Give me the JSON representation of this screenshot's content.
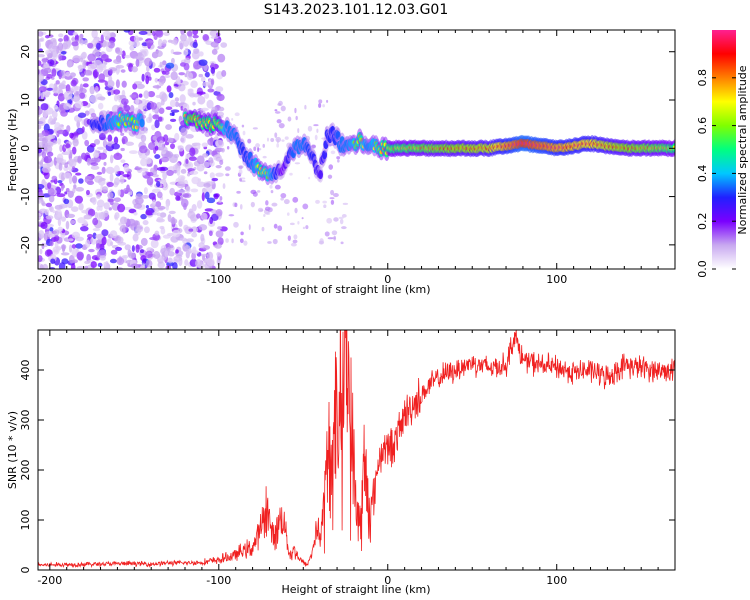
{
  "title": "S143.2023.101.12.03.G01",
  "chart_data": [
    {
      "type": "heatmap",
      "xlabel": "Height of straight line (km)",
      "ylabel": "Frequency (Hz)",
      "xlim": [
        -207,
        170
      ],
      "ylim": [
        -25,
        24.5
      ],
      "xticks": [
        -200,
        -100,
        0,
        100
      ],
      "xtick_labels": [
        "-200",
        "-100",
        "0",
        "100"
      ],
      "yticks": [
        -20,
        -10,
        0,
        10,
        20
      ],
      "ytick_labels": [
        "-20",
        "-10",
        "0",
        "10",
        "20"
      ],
      "colorbar": {
        "label": "Normalized spectral amplitude",
        "range": [
          0,
          1
        ],
        "ticks": [
          0.0,
          0.2,
          0.4,
          0.6,
          0.8
        ],
        "tick_labels": [
          "0.0",
          "0.2",
          "0.4",
          "0.6",
          "0.8"
        ],
        "colormap": [
          "#ffffff",
          "#c8a8f0",
          "#7a00ff",
          "#2020ff",
          "#00c8ff",
          "#00ff80",
          "#80ff00",
          "#ffff00",
          "#ff8000",
          "#ff0000",
          "#ff2090"
        ]
      },
      "ridge": {
        "x": [
          -210,
          -190,
          -170,
          -160,
          -150,
          -145,
          -130,
          -115,
          -110,
          -100,
          -95,
          -90,
          -85,
          -80,
          -75,
          -70,
          -66,
          -62,
          -58,
          -55,
          -50,
          -45,
          -40,
          -36,
          -32,
          -28,
          -24,
          -20,
          -16,
          -12,
          -8,
          -4,
          0,
          20,
          40,
          60,
          80,
          100,
          120,
          140,
          160,
          170
        ],
        "y": [
          5,
          5,
          5,
          6,
          5,
          6,
          6,
          6,
          5,
          5,
          4,
          2,
          -1,
          -3,
          -5,
          -6,
          -5,
          -4,
          -1,
          0,
          1,
          -2,
          -5,
          2,
          3,
          1,
          0,
          1,
          2,
          0,
          1,
          0,
          0,
          0,
          0,
          0,
          1,
          0,
          1,
          0,
          0,
          0
        ],
        "amplitude": [
          0.2,
          0.3,
          0.3,
          0.4,
          0.45,
          0.35,
          0.3,
          0.55,
          0.5,
          0.5,
          0.35,
          0.35,
          0.3,
          0.35,
          0.45,
          0.4,
          0.3,
          0.2,
          0.3,
          0.35,
          0.35,
          0.3,
          0.25,
          0.3,
          0.3,
          0.35,
          0.35,
          0.4,
          0.45,
          0.35,
          0.4,
          0.45,
          0.5,
          0.55,
          0.6,
          0.65,
          0.85,
          0.75,
          0.7,
          0.6,
          0.55,
          0.5
        ]
      }
    },
    {
      "type": "line",
      "xlabel": "Height of straight line (km)",
      "ylabel": "SNR (10 * v/v)",
      "xlim": [
        -207,
        170
      ],
      "ylim": [
        0,
        480
      ],
      "xticks": [
        -200,
        -100,
        0,
        100
      ],
      "xtick_labels": [
        "-200",
        "-100",
        "0",
        "100"
      ],
      "yticks": [
        0,
        100,
        200,
        300,
        400
      ],
      "ytick_labels": [
        "0",
        "100",
        "200",
        "300",
        "400"
      ],
      "color": "#f02020",
      "series": [
        {
          "x": [
            -207,
            -190,
            -170,
            -150,
            -140,
            -130,
            -120,
            -110,
            -100,
            -95,
            -90,
            -85,
            -80,
            -75,
            -72,
            -70,
            -68,
            -65,
            -62,
            -60,
            -58,
            -55,
            -52,
            -50,
            -48,
            -45,
            -42,
            -40,
            -38,
            -36,
            -34,
            -32,
            -30,
            -28,
            -26,
            -24,
            -22,
            -20,
            -18,
            -16,
            -14,
            -12,
            -10,
            -8,
            -6,
            -4,
            -2,
            0,
            5,
            10,
            15,
            20,
            25,
            30,
            40,
            50,
            60,
            70,
            75,
            80,
            90,
            100,
            110,
            120,
            130,
            140,
            150,
            160,
            170
          ],
          "values": [
            10,
            11,
            12,
            13,
            12,
            14,
            14,
            15,
            20,
            25,
            30,
            40,
            45,
            80,
            130,
            100,
            60,
            90,
            110,
            70,
            30,
            40,
            20,
            15,
            10,
            30,
            90,
            60,
            120,
            180,
            250,
            220,
            300,
            350,
            400,
            450,
            280,
            180,
            120,
            80,
            200,
            160,
            120,
            150,
            210,
            230,
            250,
            240,
            260,
            310,
            330,
            350,
            370,
            385,
            400,
            415,
            405,
            410,
            470,
            420,
            410,
            405,
            395,
            400,
            385,
            410,
            405,
            398,
            400
          ]
        }
      ]
    }
  ]
}
